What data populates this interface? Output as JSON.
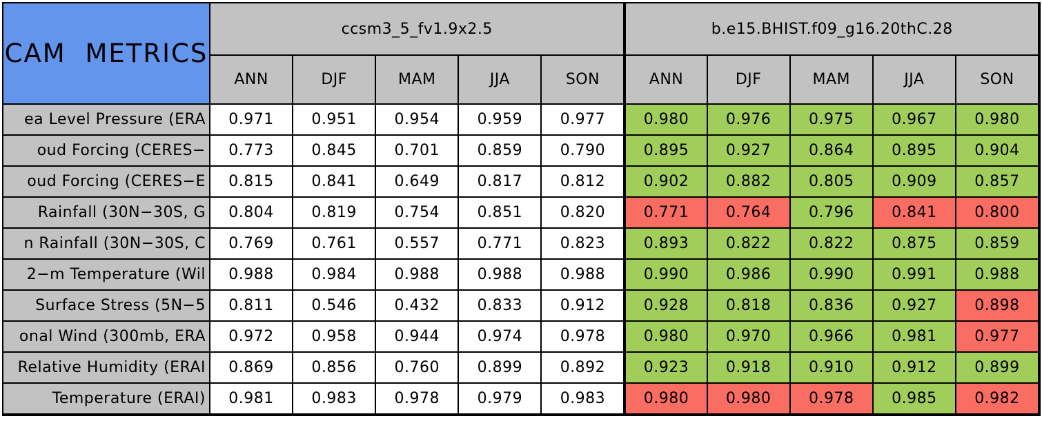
{
  "colors": {
    "blue": "#6495ed",
    "gray": "#c2c2c2",
    "green": "#a1ce5b",
    "red": "#fa6d63",
    "border": "#000000",
    "cell_white": "#ffffff"
  },
  "chart_data": {
    "type": "table",
    "title": "CAM METRICS",
    "column_groups": [
      "ccsm3_5_fv1.9x2.5",
      "b.e15.BHIST.f09_g16.20thC.28"
    ],
    "season_columns": [
      "ANN",
      "DJF",
      "MAM",
      "JJA",
      "SON"
    ],
    "legend": "model2 cells colored green (better) or red (worse) vs model1",
    "rows": [
      {
        "label": "ea Level Pressure (ERA",
        "model1": [
          "0.971",
          "0.951",
          "0.954",
          "0.959",
          "0.977"
        ],
        "model2": [
          "0.980",
          "0.976",
          "0.975",
          "0.967",
          "0.980"
        ],
        "model2_colors": [
          "green",
          "green",
          "green",
          "green",
          "green"
        ]
      },
      {
        "label": "oud Forcing (CERES−",
        "model1": [
          "0.773",
          "0.845",
          "0.701",
          "0.859",
          "0.790"
        ],
        "model2": [
          "0.895",
          "0.927",
          "0.864",
          "0.895",
          "0.904"
        ],
        "model2_colors": [
          "green",
          "green",
          "green",
          "green",
          "green"
        ]
      },
      {
        "label": "oud Forcing (CERES−E",
        "model1": [
          "0.815",
          "0.841",
          "0.649",
          "0.817",
          "0.812"
        ],
        "model2": [
          "0.902",
          "0.882",
          "0.805",
          "0.909",
          "0.857"
        ],
        "model2_colors": [
          "green",
          "green",
          "green",
          "green",
          "green"
        ]
      },
      {
        "label": "Rainfall (30N−30S, G",
        "model1": [
          "0.804",
          "0.819",
          "0.754",
          "0.851",
          "0.820"
        ],
        "model2": [
          "0.771",
          "0.764",
          "0.796",
          "0.841",
          "0.800"
        ],
        "model2_colors": [
          "red",
          "red",
          "green",
          "red",
          "red"
        ]
      },
      {
        "label": "n Rainfall (30N−30S, C",
        "model1": [
          "0.769",
          "0.761",
          "0.557",
          "0.771",
          "0.823"
        ],
        "model2": [
          "0.893",
          "0.822",
          "0.822",
          "0.875",
          "0.859"
        ],
        "model2_colors": [
          "green",
          "green",
          "green",
          "green",
          "green"
        ]
      },
      {
        "label": "2−m Temperature (Wil",
        "model1": [
          "0.988",
          "0.984",
          "0.988",
          "0.988",
          "0.988"
        ],
        "model2": [
          "0.990",
          "0.986",
          "0.990",
          "0.991",
          "0.988"
        ],
        "model2_colors": [
          "green",
          "green",
          "green",
          "green",
          "green"
        ]
      },
      {
        "label": "Surface Stress (5N−5",
        "model1": [
          "0.811",
          "0.546",
          "0.432",
          "0.833",
          "0.912"
        ],
        "model2": [
          "0.928",
          "0.818",
          "0.836",
          "0.927",
          "0.898"
        ],
        "model2_colors": [
          "green",
          "green",
          "green",
          "green",
          "red"
        ]
      },
      {
        "label": "onal Wind (300mb, ERA",
        "model1": [
          "0.972",
          "0.958",
          "0.944",
          "0.974",
          "0.978"
        ],
        "model2": [
          "0.980",
          "0.970",
          "0.966",
          "0.981",
          "0.977"
        ],
        "model2_colors": [
          "green",
          "green",
          "green",
          "green",
          "red"
        ]
      },
      {
        "label": "Relative Humidity (ERAI",
        "model1": [
          "0.869",
          "0.856",
          "0.760",
          "0.899",
          "0.892"
        ],
        "model2": [
          "0.923",
          "0.918",
          "0.910",
          "0.912",
          "0.899"
        ],
        "model2_colors": [
          "green",
          "green",
          "green",
          "green",
          "green"
        ]
      },
      {
        "label": "Temperature (ERAI)",
        "model1": [
          "0.981",
          "0.983",
          "0.978",
          "0.979",
          "0.983"
        ],
        "model2": [
          "0.980",
          "0.980",
          "0.978",
          "0.985",
          "0.982"
        ],
        "model2_colors": [
          "red",
          "red",
          "red",
          "green",
          "red"
        ]
      }
    ]
  }
}
